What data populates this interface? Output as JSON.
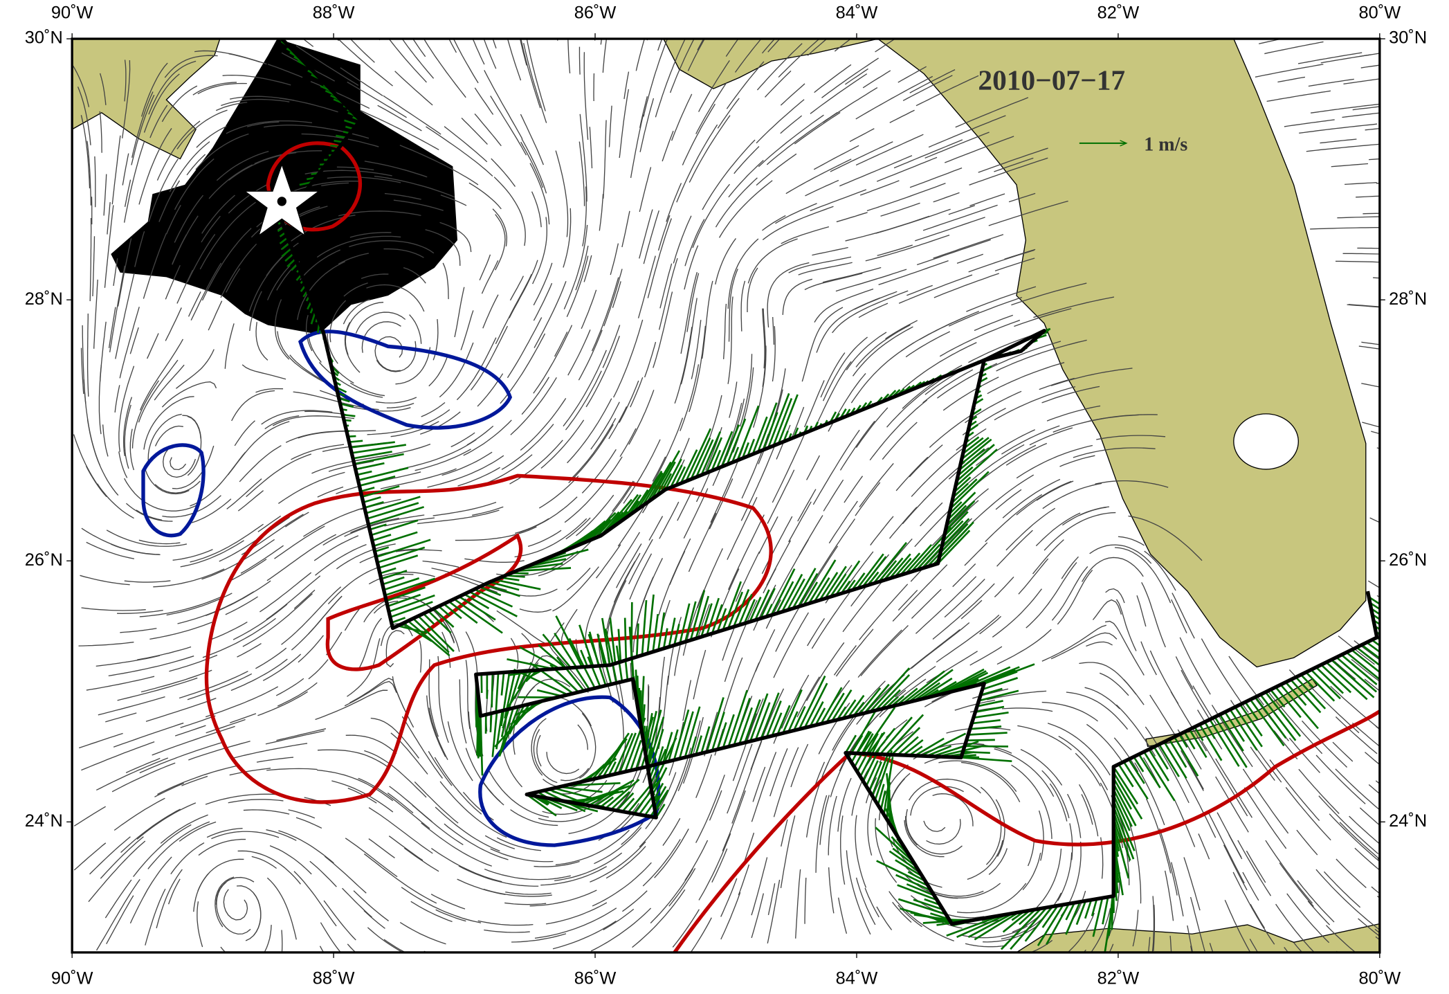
{
  "title": "2010−07−17",
  "scale_label": "1 m/s",
  "axes": {
    "xlim": [
      -90,
      -80
    ],
    "ylim": [
      23,
      30
    ],
    "xticks": [
      {
        "value": -90,
        "label": "90˚W"
      },
      {
        "value": -88,
        "label": "88˚W"
      },
      {
        "value": -86,
        "label": "86˚W"
      },
      {
        "value": -84,
        "label": "84˚W"
      },
      {
        "value": -82,
        "label": "82˚W"
      },
      {
        "value": -80,
        "label": "80˚W"
      }
    ],
    "yticks": [
      {
        "value": 24,
        "label": "24˚N"
      },
      {
        "value": 26,
        "label": "26˚N"
      },
      {
        "value": 28,
        "label": "28˚N"
      },
      {
        "value": 30,
        "label": "30˚N"
      }
    ]
  }
}
